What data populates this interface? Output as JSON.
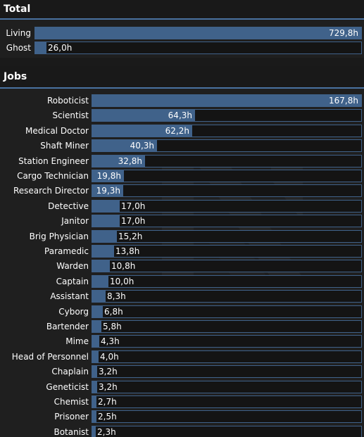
{
  "total": {
    "title": "Total",
    "rows": [
      {
        "label": "Living",
        "value": 729.8,
        "text": "729,8h"
      },
      {
        "label": "Ghost",
        "value": 26.0,
        "text": "26,0h"
      }
    ],
    "max": 729.8
  },
  "jobs": {
    "title": "Jobs",
    "rows": [
      {
        "label": "Roboticist",
        "value": 167.8,
        "text": "167,8h"
      },
      {
        "label": "Scientist",
        "value": 64.3,
        "text": "64,3h"
      },
      {
        "label": "Medical Doctor",
        "value": 62.2,
        "text": "62,2h"
      },
      {
        "label": "Shaft Miner",
        "value": 40.3,
        "text": "40,3h"
      },
      {
        "label": "Station Engineer",
        "value": 32.8,
        "text": "32,8h"
      },
      {
        "label": "Cargo Technician",
        "value": 19.8,
        "text": "19,8h"
      },
      {
        "label": "Research Director",
        "value": 19.3,
        "text": "19,3h"
      },
      {
        "label": "Detective",
        "value": 17.0,
        "text": "17,0h"
      },
      {
        "label": "Janitor",
        "value": 17.0,
        "text": "17,0h"
      },
      {
        "label": "Brig Physician",
        "value": 15.2,
        "text": "15,2h"
      },
      {
        "label": "Paramedic",
        "value": 13.8,
        "text": "13,8h"
      },
      {
        "label": "Warden",
        "value": 10.8,
        "text": "10,8h"
      },
      {
        "label": "Captain",
        "value": 10.0,
        "text": "10,0h"
      },
      {
        "label": "Assistant",
        "value": 8.3,
        "text": "8,3h"
      },
      {
        "label": "Cyborg",
        "value": 6.8,
        "text": "6,8h"
      },
      {
        "label": "Bartender",
        "value": 5.8,
        "text": "5,8h"
      },
      {
        "label": "Mime",
        "value": 4.3,
        "text": "4,3h"
      },
      {
        "label": "Head of Personnel",
        "value": 4.0,
        "text": "4,0h"
      },
      {
        "label": "Chaplain",
        "value": 3.2,
        "text": "3,2h"
      },
      {
        "label": "Geneticist",
        "value": 3.2,
        "text": "3,2h"
      },
      {
        "label": "Chemist",
        "value": 2.7,
        "text": "2,7h"
      },
      {
        "label": "Prisoner",
        "value": 2.5,
        "text": "2,5h"
      },
      {
        "label": "Botanist",
        "value": 2.3,
        "text": "2,3h"
      }
    ],
    "max": 167.8
  },
  "colors": {
    "bar_fill": "#40628a",
    "bar_border": "#40628a",
    "bar_track": "#141414",
    "header_underline": "#4972a1",
    "background": "#1f1f1f"
  }
}
